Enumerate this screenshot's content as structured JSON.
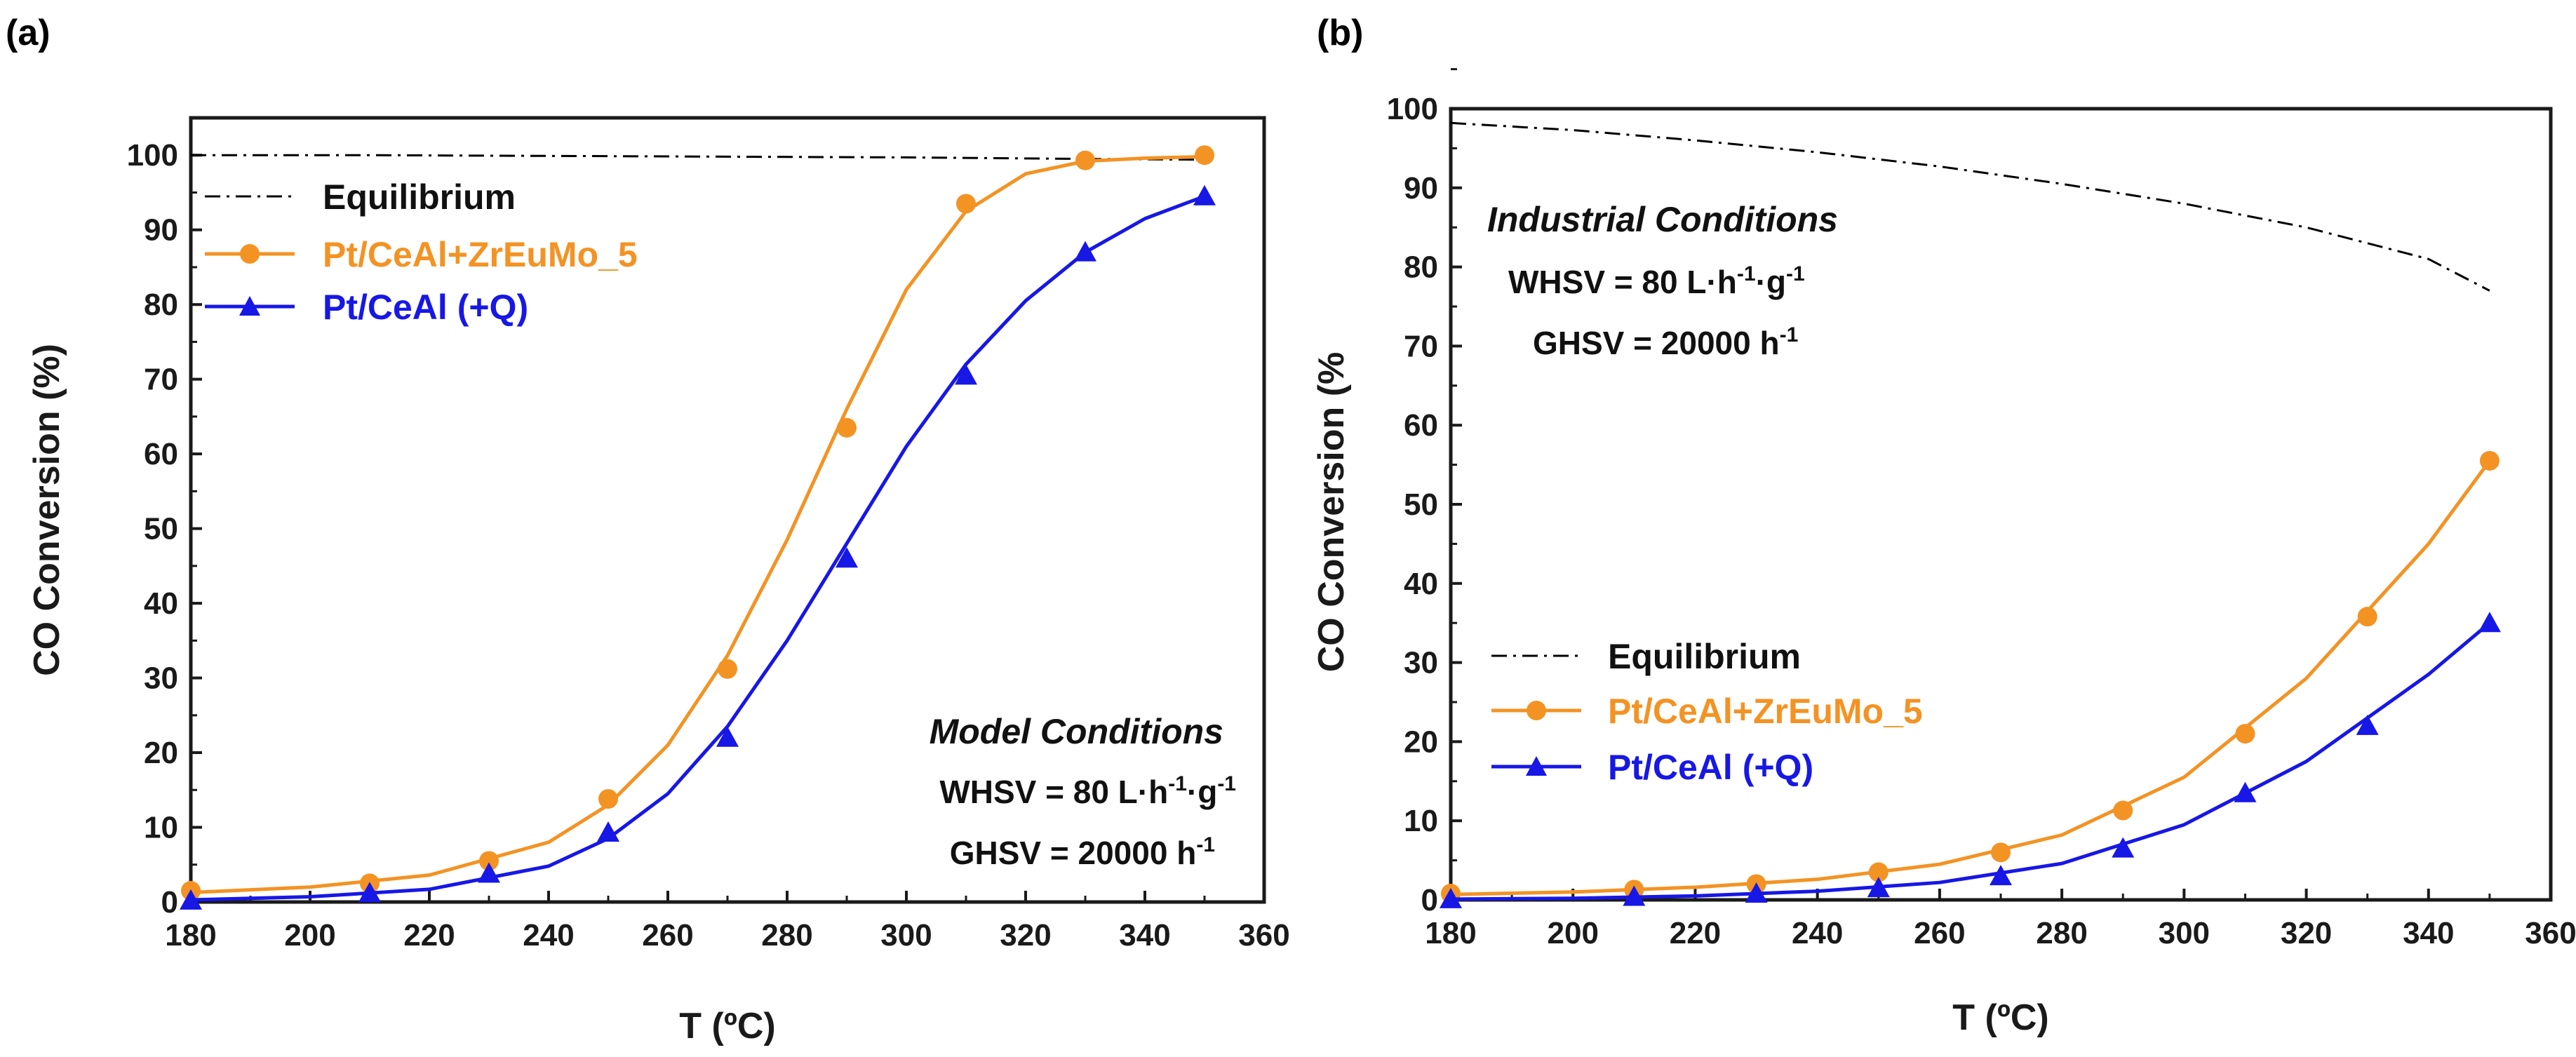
{
  "colors": {
    "equilibrium": "#000000",
    "pt_ceal_zreumo": "#f39324",
    "pt_ceal_q": "#1717e6",
    "axis": "#1a1a1a"
  },
  "chart_data": [
    {
      "type": "line",
      "panel_label": "(a)",
      "xlabel": "T (ºC)",
      "ylabel": "CO Conversion (%)",
      "xlim": [
        180,
        360
      ],
      "ylim": [
        0,
        105
      ],
      "xticks": [
        180,
        200,
        220,
        240,
        260,
        280,
        300,
        320,
        340,
        360
      ],
      "yticks": [
        0,
        10,
        20,
        30,
        40,
        50,
        60,
        70,
        80,
        90,
        100
      ],
      "legend_position": "top-left",
      "series": [
        {
          "name": "Equilibrium",
          "style": "dash-dot",
          "x": [
            180,
            210,
            240,
            270,
            300,
            330,
            350
          ],
          "y": [
            100,
            100,
            99.9,
            99.8,
            99.7,
            99.5,
            99.4
          ]
        },
        {
          "name": "Pt/CeAl+ZrEuMo_5",
          "marker": "circle",
          "x": [
            180,
            210,
            230,
            250,
            270,
            290,
            310,
            330,
            350
          ],
          "y": [
            1.5,
            2.5,
            5.5,
            13.8,
            31.2,
            63.5,
            93.5,
            99.3,
            100
          ],
          "fit": {
            "x": [
              181,
              200,
              220,
              240,
              250,
              260,
              270,
              280,
              290,
              300,
              310,
              320,
              330,
              340,
              350
            ],
            "y": [
              1.3,
              2.0,
              3.6,
              8.0,
              13.0,
              21.0,
              33.0,
              48.5,
              66.0,
              82.0,
              92.5,
              97.5,
              99.2,
              99.6,
              99.8
            ]
          }
        },
        {
          "name": "Pt/CeAl (+Q)",
          "marker": "triangle",
          "x": [
            180,
            210,
            230,
            250,
            270,
            290,
            310,
            330,
            350
          ],
          "y": [
            0.2,
            1.2,
            3.8,
            9.3,
            22.0,
            46.0,
            70.5,
            87.0,
            94.5
          ],
          "fit": {
            "x": [
              181,
              200,
              220,
              240,
              250,
              260,
              270,
              280,
              290,
              300,
              310,
              320,
              330,
              340,
              350
            ],
            "y": [
              0.3,
              0.7,
              1.7,
              4.8,
              8.5,
              14.5,
              23.5,
              35.0,
              48.0,
              61.0,
              72.0,
              80.5,
              87.0,
              91.5,
              94.5
            ]
          }
        }
      ],
      "annotations": {
        "conditions_title": "Model Conditions",
        "whsv_prefix": "WHSV = 80 L·h",
        "whsv_exp1": "-1",
        "whsv_mid": "·g",
        "whsv_exp2": "-1",
        "ghsv_prefix": "GHSV = 20000 h",
        "ghsv_exp": "-1"
      }
    },
    {
      "type": "line",
      "panel_label": "(b)",
      "xlabel": "T (ºC)",
      "ylabel": "CO Conversion (%",
      "xlim": [
        180,
        360
      ],
      "ylim": [
        0,
        100
      ],
      "xticks": [
        180,
        200,
        220,
        240,
        260,
        280,
        300,
        320,
        340,
        360
      ],
      "yticks": [
        0,
        10,
        20,
        30,
        40,
        50,
        60,
        70,
        80,
        90,
        100
      ],
      "legend_position": "center-left",
      "series": [
        {
          "name": "Equilibrium",
          "style": "dash-dot",
          "x": [
            180,
            200,
            220,
            240,
            260,
            280,
            300,
            320,
            340,
            350
          ],
          "y": [
            98.2,
            97.3,
            96.0,
            94.5,
            92.7,
            90.5,
            88.0,
            85.0,
            81.0,
            77.0
          ]
        },
        {
          "name": "Pt/CeAl+ZrEuMo_5",
          "marker": "circle",
          "x": [
            180,
            210,
            230,
            250,
            270,
            290,
            310,
            330,
            350
          ],
          "y": [
            0.8,
            1.3,
            2.0,
            3.5,
            6.0,
            11.3,
            21.0,
            35.8,
            55.5
          ],
          "fit": {
            "x": [
              181,
              200,
              220,
              240,
              260,
              280,
              300,
              320,
              340,
              350
            ],
            "y": [
              0.7,
              1.0,
              1.6,
              2.6,
              4.5,
              8.2,
              15.5,
              28.0,
              45.0,
              55.5
            ]
          }
        },
        {
          "name": "Pt/CeAl (+Q)",
          "marker": "triangle",
          "x": [
            180,
            210,
            230,
            250,
            270,
            290,
            310,
            330,
            350
          ],
          "y": [
            0.1,
            0.4,
            0.8,
            1.5,
            3.0,
            6.5,
            13.5,
            22.0,
            35.0
          ],
          "fit": {
            "x": [
              181,
              200,
              220,
              240,
              260,
              280,
              300,
              320,
              340,
              350
            ],
            "y": [
              0.1,
              0.2,
              0.5,
              1.1,
              2.2,
              4.6,
              9.5,
              17.5,
              28.5,
              35.0
            ]
          }
        }
      ],
      "annotations": {
        "conditions_title": "Industrial Conditions",
        "whsv_prefix": "WHSV = 80 L·h",
        "whsv_exp1": "-1",
        "whsv_mid": "·g",
        "whsv_exp2": "-1",
        "ghsv_prefix": "GHSV = 20000 h",
        "ghsv_exp": "-1"
      }
    }
  ]
}
